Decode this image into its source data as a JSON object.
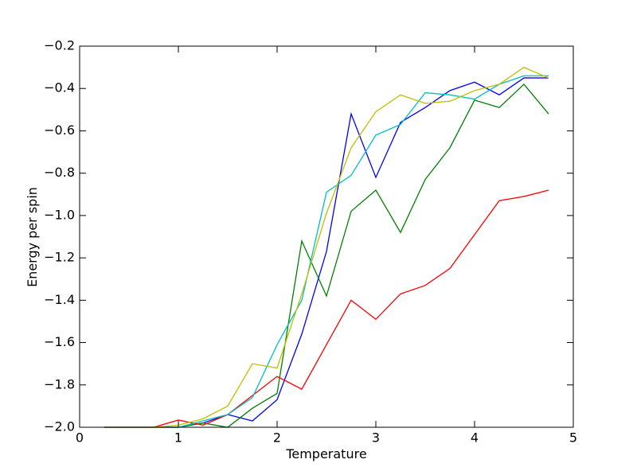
{
  "chart_data": {
    "type": "line",
    "xlabel": "Temperature",
    "ylabel": "Energy per spin",
    "x": [
      0.25,
      0.5,
      0.75,
      1,
      1.25,
      1.5,
      1.75,
      2,
      2.25,
      2.5,
      2.75,
      3,
      3.25,
      3.5,
      3.75,
      4,
      4.25,
      4.5,
      4.75
    ],
    "series": [
      {
        "color": "#0000ff",
        "values": [
          -2,
          -2,
          -2,
          -2,
          -1.98,
          -1.94,
          -1.97,
          -1.87,
          -1.56,
          -1.17,
          -0.52,
          -0.82,
          -0.56,
          -0.49,
          -0.41,
          -0.37,
          -0.43,
          -0.35,
          -0.35
        ]
      },
      {
        "color": "#008000",
        "values": [
          -2,
          -2,
          -2,
          -2,
          -1.98,
          -2,
          -1.91,
          -1.84,
          -1.12,
          -1.38,
          -0.98,
          -0.88,
          -1.08,
          -0.83,
          -0.68,
          -0.455,
          -0.49,
          -0.38,
          -0.52
        ]
      },
      {
        "color": "#ff0000",
        "values": [
          -2,
          -2,
          -2,
          -1.966,
          -1.99,
          -1.94,
          -1.85,
          -1.76,
          -1.82,
          -1.61,
          -1.4,
          -1.49,
          -1.37,
          -1.33,
          -1.25,
          -1.09,
          -0.93,
          -0.91,
          -0.88
        ]
      },
      {
        "color": "#00bfbf",
        "values": [
          -2,
          -2,
          -2,
          -2,
          -1.97,
          -1.94,
          -1.86,
          -1.61,
          -1.4,
          -0.89,
          -0.81,
          -0.62,
          -0.57,
          -0.42,
          -0.43,
          -0.45,
          -0.38,
          -0.34,
          -0.34
        ]
      },
      {
        "color": "#bfbf00",
        "values": [
          -2,
          -2,
          -2,
          -1.99,
          -1.96,
          -1.9,
          -1.7,
          -1.72,
          -1.37,
          -0.99,
          -0.68,
          -0.51,
          -0.43,
          -0.47,
          -0.46,
          -0.41,
          -0.38,
          -0.3,
          -0.35
        ]
      }
    ],
    "xlim": [
      0,
      5
    ],
    "xticks": [
      0,
      1,
      2,
      3,
      4,
      5
    ],
    "ylim": [
      -2,
      -0.2
    ],
    "yticks": [
      {
        "value": -2,
        "label": "−2.0"
      },
      {
        "value": -1.8,
        "label": "−1.8"
      },
      {
        "value": -1.6,
        "label": "−1.6"
      },
      {
        "value": -1.4,
        "label": "−1.4"
      },
      {
        "value": -1.2,
        "label": "−1.2"
      },
      {
        "value": -1,
        "label": "−1.0"
      },
      {
        "value": -0.8,
        "label": "−0.8"
      },
      {
        "value": -0.6,
        "label": "−0.6"
      },
      {
        "value": -0.4,
        "label": "−0.4"
      },
      {
        "value": -0.2,
        "label": "−0.2"
      }
    ],
    "grid": false
  }
}
